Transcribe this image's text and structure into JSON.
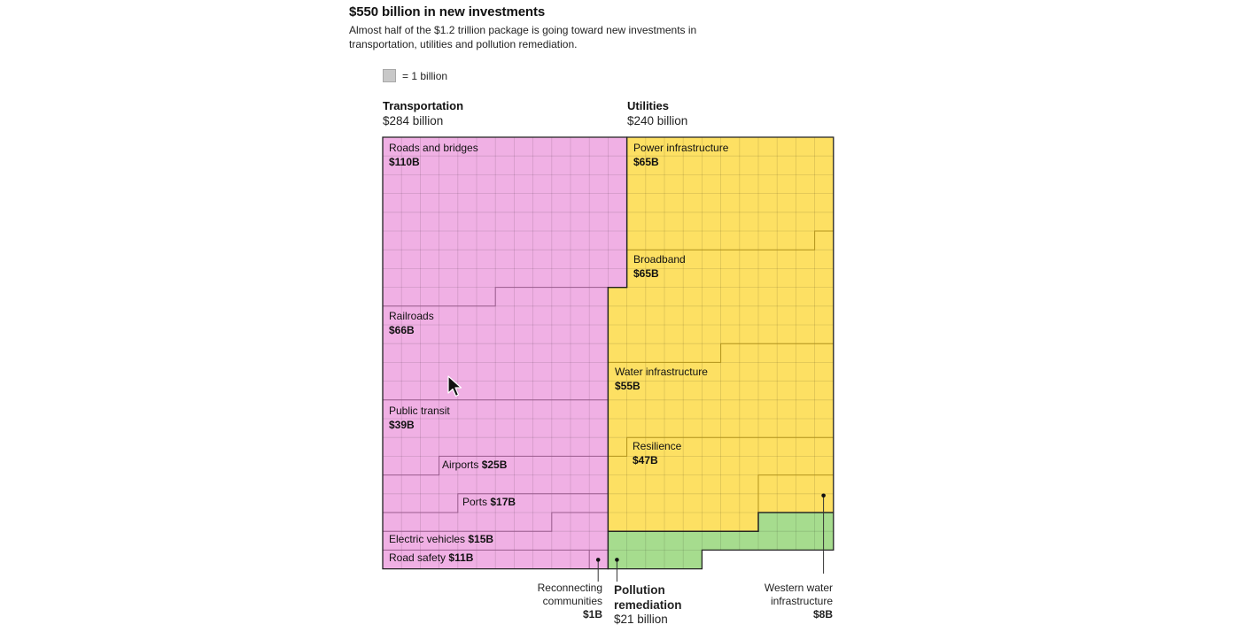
{
  "chart_data": {
    "type": "table",
    "unit_note": "= 1 billion",
    "title": "$550 billion in new investments",
    "subtitle": "Almost half of the $1.2 trillion package is going toward new investments in transportation, utilities and pollution remediation.",
    "groups": [
      {
        "name": "Transportation",
        "total": "$284 billion",
        "total_value": 284,
        "color": "#f0b0e4",
        "items": [
          {
            "name": "Roads and bridges",
            "label": "$110B",
            "value": 110
          },
          {
            "name": "Railroads",
            "label": "$66B",
            "value": 66
          },
          {
            "name": "Public transit",
            "label": "$39B",
            "value": 39
          },
          {
            "name": "Airports",
            "label": "$25B",
            "value": 25
          },
          {
            "name": "Ports",
            "label": "$17B",
            "value": 17
          },
          {
            "name": "Electric vehicles",
            "label": "$15B",
            "value": 15
          },
          {
            "name": "Road safety",
            "label": "$11B",
            "value": 11
          },
          {
            "name": "Reconnecting communities",
            "label": "$1B",
            "value": 1
          }
        ]
      },
      {
        "name": "Utilities",
        "total": "$240 billion",
        "total_value": 240,
        "color": "#fde063",
        "items": [
          {
            "name": "Power infrastructure",
            "label": "$65B",
            "value": 65
          },
          {
            "name": "Broadband",
            "label": "$65B",
            "value": 65
          },
          {
            "name": "Water infrastructure",
            "label": "$55B",
            "value": 55
          },
          {
            "name": "Resilience",
            "label": "$47B",
            "value": 47
          },
          {
            "name": "Western water infrastructure",
            "label": "$8B",
            "value": 8
          }
        ]
      },
      {
        "name": "Pollution remediation",
        "total": "$21 billion",
        "total_value": 21,
        "color": "#a6dc8e",
        "items": []
      }
    ]
  },
  "annotations": {
    "reconnecting": {
      "line1": "Reconnecting",
      "line2": "communities"
    },
    "pollution": {
      "line1": "Pollution",
      "line2": "remediation"
    },
    "western": {
      "line1": "Western water",
      "line2": "infrastructure"
    }
  }
}
